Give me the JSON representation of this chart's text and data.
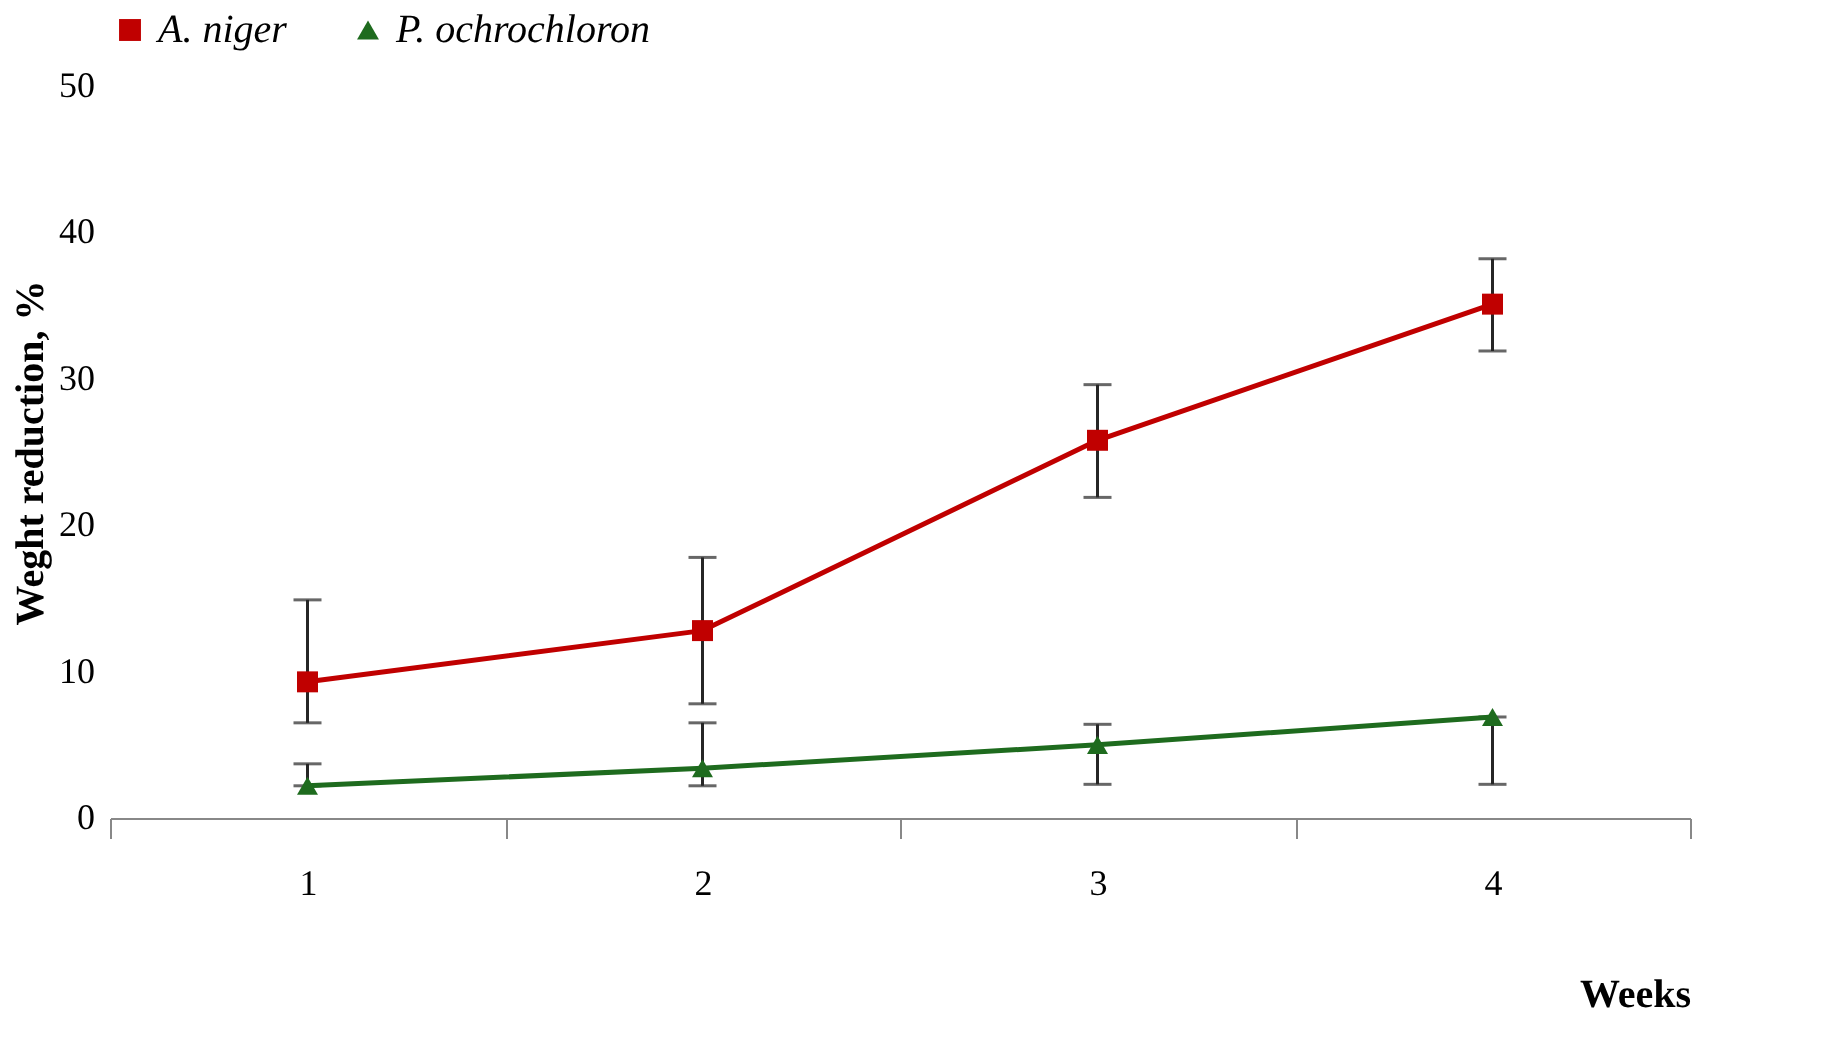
{
  "chart_data": {
    "type": "line",
    "xlabel": "Weeks",
    "ylabel": "Weght reduction, %",
    "categories": [
      "1",
      "2",
      "3",
      "4"
    ],
    "series": [
      {
        "name": "A. niger",
        "color": "#c00000",
        "marker": "square",
        "values": [
          9.3,
          12.8,
          25.8,
          35.1
        ],
        "errors": [
          [
            6.5,
            14.9
          ],
          [
            7.8,
            17.8
          ],
          [
            21.9,
            29.6
          ],
          [
            31.9,
            38.2
          ]
        ]
      },
      {
        "name": "P. ochrochloron",
        "color": "#1e6b1e",
        "marker": "triangle",
        "values": [
          2.2,
          3.4,
          5.0,
          6.9
        ],
        "errors": [
          [
            2.2,
            3.7
          ],
          [
            2.2,
            6.5
          ],
          [
            2.3,
            6.4
          ],
          [
            2.3,
            6.9
          ]
        ]
      }
    ],
    "ylim": [
      0,
      50
    ],
    "yticks": [
      0,
      10,
      20,
      30,
      40,
      50
    ],
    "grid": false,
    "legend": "top"
  }
}
